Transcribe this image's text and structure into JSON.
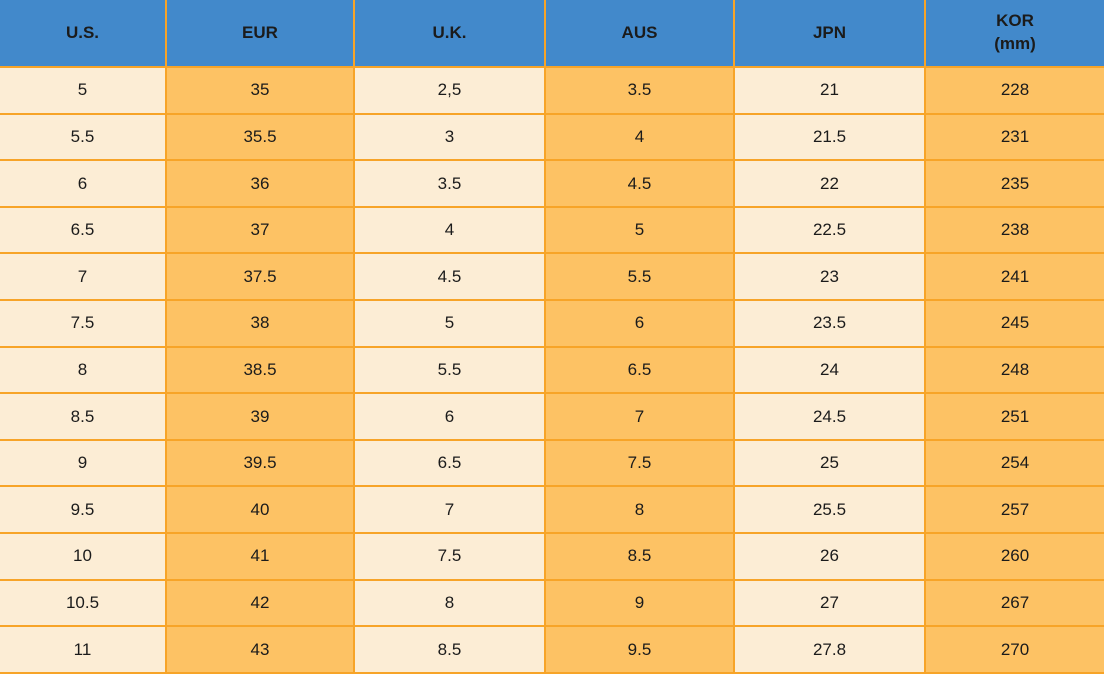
{
  "chart_data": {
    "type": "table",
    "columns": [
      {
        "label": "U.S.",
        "sublabel": ""
      },
      {
        "label": "EUR",
        "sublabel": ""
      },
      {
        "label": "U.K.",
        "sublabel": ""
      },
      {
        "label": "AUS",
        "sublabel": ""
      },
      {
        "label": "JPN",
        "sublabel": ""
      },
      {
        "label": "KOR",
        "sublabel": "(mm)"
      }
    ],
    "rows": [
      [
        "5",
        "35",
        "2,5",
        "3.5",
        "21",
        "228"
      ],
      [
        "5.5",
        "35.5",
        "3",
        "4",
        "21.5",
        "231"
      ],
      [
        "6",
        "36",
        "3.5",
        "4.5",
        "22",
        "235"
      ],
      [
        "6.5",
        "37",
        "4",
        "5",
        "22.5",
        "238"
      ],
      [
        "7",
        "37.5",
        "4.5",
        "5.5",
        "23",
        "241"
      ],
      [
        "7.5",
        "38",
        "5",
        "6",
        "23.5",
        "245"
      ],
      [
        "8",
        "38.5",
        "5.5",
        "6.5",
        "24",
        "248"
      ],
      [
        "8.5",
        "39",
        "6",
        "7",
        "24.5",
        "251"
      ],
      [
        "9",
        "39.5",
        "6.5",
        "7.5",
        "25",
        "254"
      ],
      [
        "9.5",
        "40",
        "7",
        "8",
        "25.5",
        "257"
      ],
      [
        "10",
        "41",
        "7.5",
        "8.5",
        "26",
        "260"
      ],
      [
        "10.5",
        "42",
        "8",
        "9",
        "27",
        "267"
      ],
      [
        "11",
        "43",
        "8.5",
        "9.5",
        "27.8",
        "270"
      ]
    ]
  },
  "colors": {
    "header_bg": "#4289CB",
    "column_light": "#FCEDD5",
    "column_orange": "#FDC264",
    "grid_border": "#F7A428",
    "text": "#1b1b1b"
  }
}
